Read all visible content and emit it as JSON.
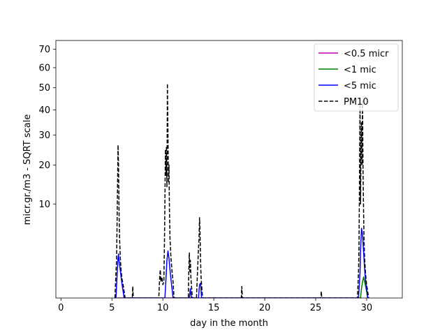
{
  "chart_data": {
    "type": "line",
    "xlabel": "day in the month",
    "ylabel": "micr.gr./m3 - SQRT scale",
    "y_scale": "sqrt",
    "xlim": [
      -0.5,
      33.5
    ],
    "ylim": [
      0,
      75
    ],
    "x_ticks": [
      0,
      5,
      10,
      15,
      20,
      25,
      30
    ],
    "y_ticks": [
      10,
      20,
      30,
      40,
      50,
      60,
      70
    ],
    "grid": false,
    "legend_position": "top-right",
    "series": [
      {
        "name": "<0.5 micr",
        "color": "#bf00bf",
        "style": "solid",
        "x": [
          5.5,
          29.5
        ],
        "y": [
          0.0,
          0.0
        ]
      },
      {
        "name": "<1 mic",
        "color": "#008000",
        "style": "solid",
        "x": [
          29.4,
          29.5,
          29.6,
          29.7,
          29.8,
          29.9,
          30.0,
          30.1
        ],
        "y": [
          0.0,
          0.1,
          0.3,
          0.5,
          0.3,
          0.15,
          0.05,
          0.0
        ]
      },
      {
        "name": "<5 mic",
        "color": "#0000ff",
        "style": "solid",
        "x": [
          5.4,
          5.5,
          5.6,
          5.65,
          5.7,
          5.8,
          5.9,
          6.0,
          6.1,
          6.2,
          10.2,
          10.3,
          10.4,
          10.5,
          10.6,
          10.7,
          10.8,
          10.9,
          11.0,
          12.6,
          12.7,
          12.8,
          13.5,
          13.6,
          13.7,
          13.8,
          29.2,
          29.3,
          29.35,
          29.4,
          29.5,
          29.6,
          29.7,
          29.8,
          29.9,
          30.0,
          30.1
        ],
        "y": [
          0.0,
          0.5,
          1.8,
          2.2,
          1.6,
          1.0,
          0.5,
          0.2,
          0.05,
          0.0,
          0.0,
          0.4,
          1.6,
          2.5,
          1.8,
          0.9,
          0.4,
          0.1,
          0.0,
          0.0,
          0.1,
          0.0,
          0.0,
          0.2,
          0.25,
          0.0,
          0.0,
          0.3,
          0.8,
          2.5,
          5.5,
          4.6,
          2.4,
          1.0,
          0.3,
          0.1,
          0.0
        ]
      },
      {
        "name": "PM10",
        "color": "#000000",
        "style": "dashed",
        "x": [
          5.3,
          5.4,
          5.45,
          5.5,
          5.55,
          5.6,
          5.65,
          5.7,
          5.75,
          5.8,
          5.85,
          5.9,
          6.0,
          6.1,
          6.2,
          6.3,
          7.0,
          7.05,
          7.1,
          9.6,
          9.7,
          9.75,
          9.8,
          9.9,
          10.0,
          10.1,
          10.15,
          10.2,
          10.25,
          10.3,
          10.35,
          10.4,
          10.45,
          10.5,
          10.55,
          10.6,
          10.65,
          10.7,
          10.8,
          10.9,
          11.0,
          11.1,
          12.5,
          12.55,
          12.6,
          12.65,
          12.7,
          12.75,
          12.8,
          12.9,
          13.3,
          13.4,
          13.5,
          13.55,
          13.6,
          13.65,
          13.7,
          13.75,
          13.8,
          13.9,
          17.7,
          17.75,
          17.8,
          25.5,
          25.55,
          25.6,
          29.1,
          29.2,
          29.25,
          29.3,
          29.35,
          29.4,
          29.45,
          29.5,
          29.55,
          29.6,
          29.65,
          29.7,
          29.75,
          29.8,
          29.9,
          30.0,
          30.1,
          30.2
        ],
        "y": [
          0.0,
          0.8,
          1.5,
          5.0,
          14.0,
          26.5,
          20.0,
          9.0,
          4.0,
          2.5,
          1.5,
          0.8,
          0.4,
          0.2,
          0.05,
          0.0,
          0.0,
          0.15,
          0.0,
          0.0,
          0.6,
          0.9,
          0.3,
          0.5,
          0.2,
          0.3,
          3.0,
          10.0,
          25.0,
          17.0,
          26.0,
          14.0,
          52.0,
          30.0,
          15.0,
          20.0,
          8.0,
          4.0,
          1.8,
          0.8,
          0.3,
          0.0,
          0.0,
          1.0,
          2.3,
          0.8,
          1.6,
          0.5,
          0.2,
          0.0,
          0.0,
          0.8,
          2.8,
          4.0,
          7.3,
          5.0,
          1.5,
          0.5,
          0.2,
          0.0,
          0.0,
          0.15,
          0.0,
          0.0,
          0.05,
          0.0,
          0.0,
          0.8,
          3.0,
          15.0,
          43.0,
          10.0,
          25.0,
          35.0,
          20.0,
          44.0,
          18.0,
          8.0,
          3.5,
          1.8,
          0.6,
          0.2,
          0.05,
          0.0
        ]
      }
    ]
  }
}
